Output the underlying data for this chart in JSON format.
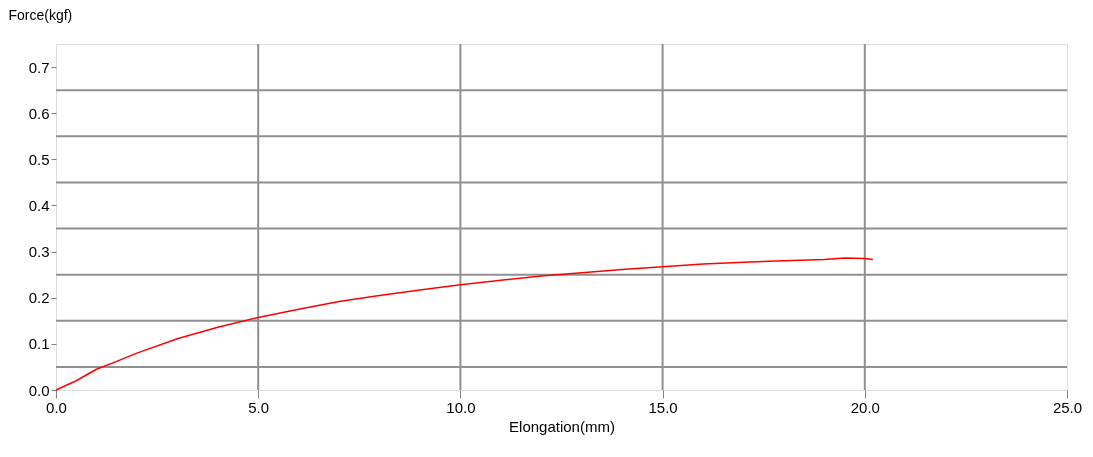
{
  "chart_data": {
    "type": "line",
    "xlabel": "Elongation(mm)",
    "ylabel": "Force(kgf)",
    "x": [
      0,
      0.5,
      1,
      1.5,
      2,
      3,
      4,
      5,
      6,
      7,
      8,
      9,
      10,
      11,
      12,
      13,
      14,
      15,
      16,
      17,
      18,
      19,
      19.5,
      20,
      20.2
    ],
    "series": [
      {
        "color": "#ff0000",
        "values": [
          0,
          0.02,
          0.045,
          0.062,
          0.08,
          0.111,
          0.136,
          0.157,
          0.175,
          0.192,
          0.205,
          0.217,
          0.228,
          0.238,
          0.247,
          0.254,
          0.261,
          0.267,
          0.273,
          0.277,
          0.28,
          0.283,
          0.286,
          0.285,
          0.283
        ]
      }
    ],
    "xlim": [
      0,
      25
    ],
    "xticks": [
      {
        "value": 0,
        "label": "0.0"
      },
      {
        "value": 5,
        "label": "5.0"
      },
      {
        "value": 10,
        "label": "10.0"
      },
      {
        "value": 15,
        "label": "15.0"
      },
      {
        "value": 20,
        "label": "20.0"
      },
      {
        "value": 25,
        "label": "25.0"
      }
    ],
    "ylim": [
      0,
      0.75
    ],
    "yticks": [
      {
        "value": 0,
        "label": "0.0"
      },
      0.1,
      0.2,
      0.3,
      0.4,
      0.5,
      0.6,
      0.7,
      {
        "value": 0.05,
        "label": null
      },
      {
        "value": 0.15,
        "label": null
      },
      {
        "value": 0.25,
        "label": null
      },
      {
        "value": 0.35,
        "label": null
      },
      {
        "value": 0.45,
        "label": null
      },
      {
        "value": 0.55,
        "label": null
      },
      {
        "value": 0.65,
        "label": null
      }
    ],
    "grid": true,
    "marker": "none",
    "line_style": "solid"
  }
}
